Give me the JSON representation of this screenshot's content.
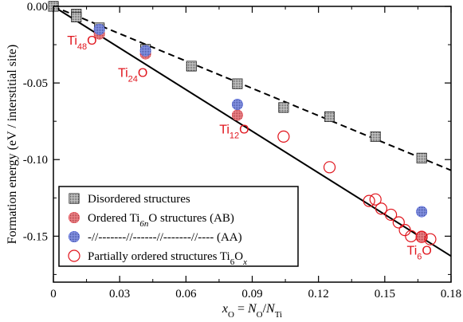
{
  "chart_data": {
    "type": "scatter",
    "xlabel": {
      "x": "x",
      "x_sub": "O",
      "eq": " = ",
      "n": "N",
      "n_sub": "O",
      "slash": "/",
      "d": "N",
      "d_sub": "Ti"
    },
    "ylabel": "Formation energy (eV / interstitial site)",
    "xlim": [
      0,
      0.18
    ],
    "ylim": [
      -0.18,
      0
    ],
    "x_ticks": [
      "0",
      "0.03",
      "0.06",
      "0.09",
      "0.12",
      "0.15",
      "0.18"
    ],
    "y_ticks": [
      "0.00",
      "-0.05",
      "-0.10",
      "-0.15"
    ],
    "x_tick_values": [
      0,
      0.03,
      0.06,
      0.09,
      0.12,
      0.15,
      0.18
    ],
    "y_tick_values": [
      0,
      -0.05,
      -0.1,
      -0.15
    ],
    "series": [
      {
        "name": "Disordered structures",
        "marker": "square",
        "color": "#555555",
        "points": [
          [
            0.0,
            0.0
          ],
          [
            0.0104,
            -0.005
          ],
          [
            0.0104,
            -0.007
          ],
          [
            0.0208,
            -0.014
          ],
          [
            0.0417,
            -0.028
          ],
          [
            0.0625,
            -0.039
          ],
          [
            0.0833,
            -0.0505
          ],
          [
            0.1042,
            -0.066
          ],
          [
            0.125,
            -0.072
          ],
          [
            0.1458,
            -0.085
          ],
          [
            0.1667,
            -0.099
          ]
        ]
      },
      {
        "name": {
          "pre": "Ordered Ti",
          "sub": "6n",
          "post": "O structures (AB)"
        },
        "marker": "circle-filled",
        "color": "#e8454d",
        "points": [
          [
            0.0208,
            -0.018
          ],
          [
            0.0417,
            -0.031
          ],
          [
            0.0833,
            -0.071
          ],
          [
            0.1667,
            -0.15
          ]
        ]
      },
      {
        "name": "-//-------//------//-------//---- (AA)",
        "marker": "circle-filled",
        "color": "#4a5fd8",
        "points": [
          [
            0.0208,
            -0.015
          ],
          [
            0.0417,
            -0.029
          ],
          [
            0.0833,
            -0.064
          ],
          [
            0.1667,
            -0.134
          ]
        ]
      },
      {
        "name": {
          "pre": "Partially ordered  structures Ti",
          "sub": "6",
          "mid": "O",
          "sub2": "x"
        },
        "marker": "circle-open",
        "color": "#e0141c",
        "points": [
          [
            0.1042,
            -0.085
          ],
          [
            0.125,
            -0.105
          ],
          [
            0.1429,
            -0.127
          ],
          [
            0.1458,
            -0.126
          ],
          [
            0.1484,
            -0.132
          ],
          [
            0.1528,
            -0.136
          ],
          [
            0.1563,
            -0.141
          ],
          [
            0.1591,
            -0.146
          ],
          [
            0.1619,
            -0.15
          ],
          [
            0.1667,
            -0.1505
          ],
          [
            0.1706,
            -0.152
          ]
        ]
      }
    ],
    "fit_lines": [
      {
        "style": "dashed",
        "color": "#000000",
        "from": [
          0,
          0
        ],
        "to": [
          0.18,
          -0.107
        ]
      },
      {
        "style": "solid",
        "color": "#000000",
        "from": [
          0,
          0
        ],
        "to": [
          0.18,
          -0.163
        ]
      }
    ],
    "annotations": [
      {
        "base": "Ti",
        "sub": "48",
        "tail": "O",
        "x": 0.0062,
        "y": -0.025
      },
      {
        "base": "Ti",
        "sub": "24",
        "tail": "O",
        "x": 0.0292,
        "y": -0.046
      },
      {
        "base": "Ti",
        "sub": "12",
        "tail": "O",
        "x": 0.0751,
        "y": -0.083
      },
      {
        "base": "Ti",
        "sub": "6",
        "tail": "O",
        "x": 0.16,
        "y": -0.162
      }
    ],
    "legend_position": "bottom-left",
    "grid": false
  }
}
